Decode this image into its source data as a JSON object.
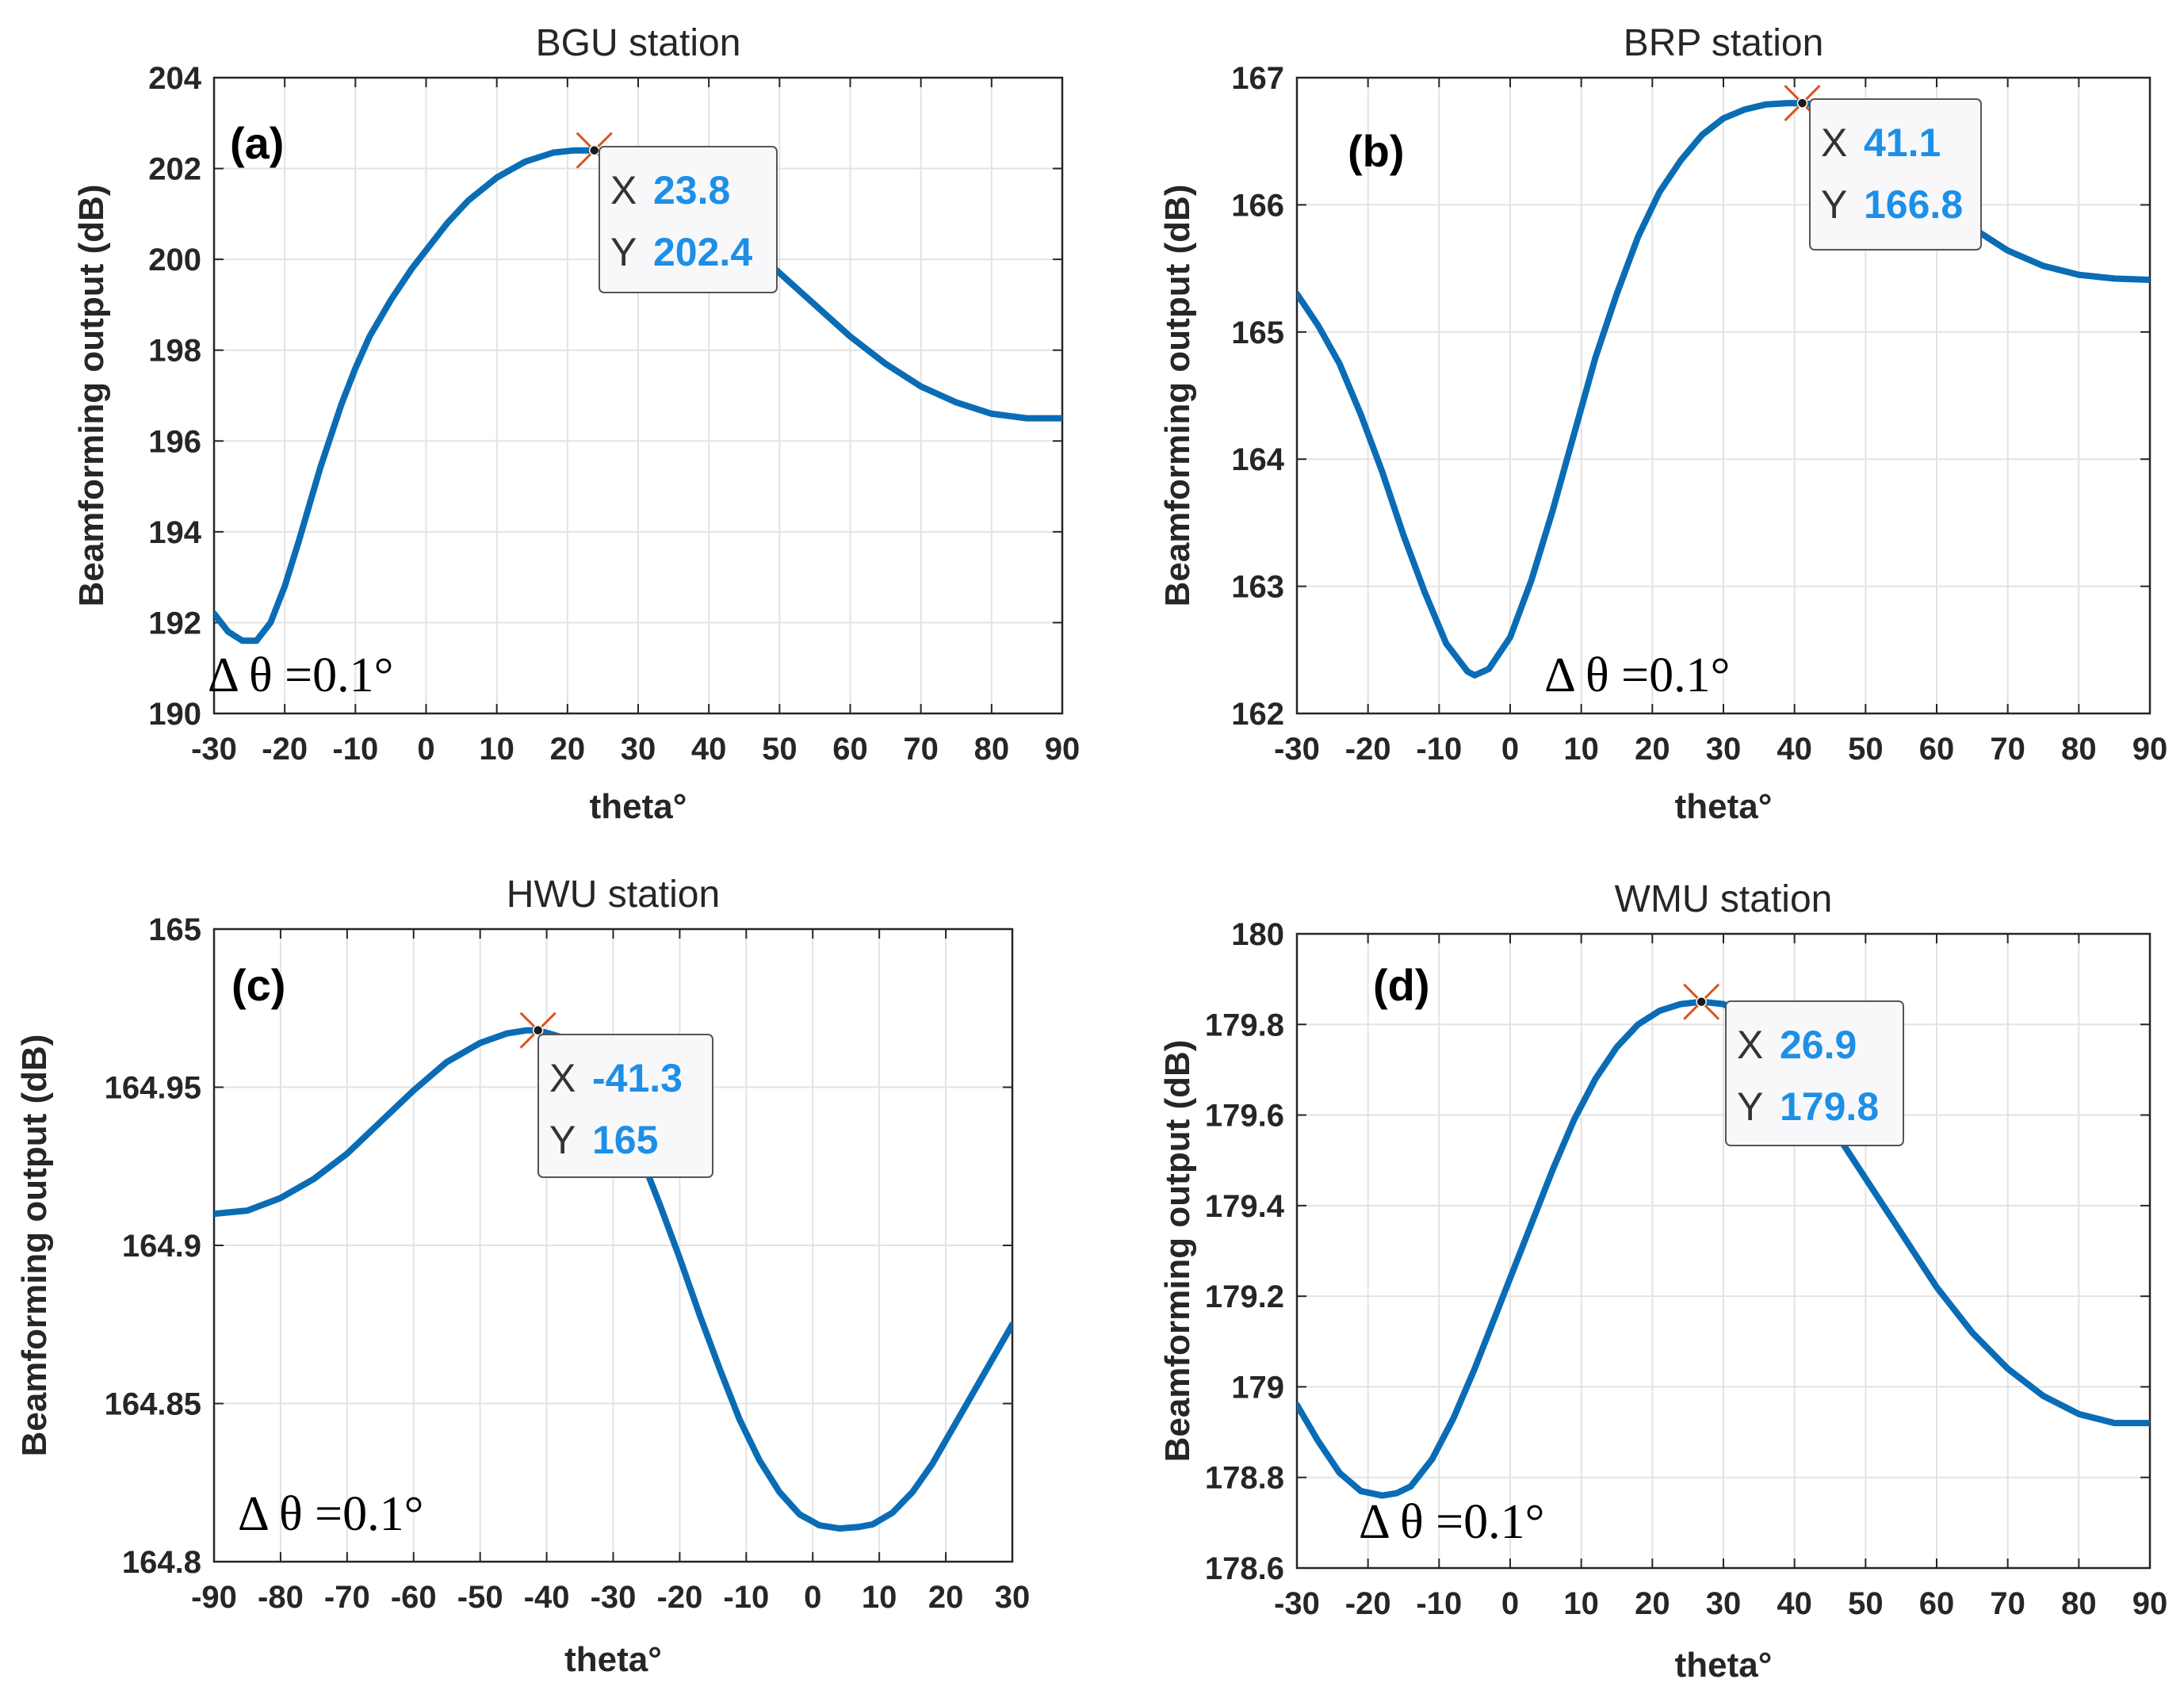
{
  "colors": {
    "curve": "#0a6cb5",
    "datatip_value": "#1e8fe6",
    "marker_cross": "#d9541a"
  },
  "chart_data": [
    {
      "type": "line",
      "panel_label": "(a)",
      "title": "BGU station",
      "xlabel": "theta°",
      "ylabel": "Beamforming output (dB)",
      "xlim": [
        -30,
        90
      ],
      "ylim": [
        190,
        204
      ],
      "x_ticks": [
        -30,
        -20,
        -10,
        0,
        10,
        20,
        30,
        40,
        50,
        60,
        70,
        80,
        90
      ],
      "y_ticks": [
        190,
        192,
        194,
        196,
        198,
        200,
        202,
        204
      ],
      "x_tick_labels": [
        "-30",
        "-20",
        "-10",
        "0",
        "10",
        "20",
        "30",
        "40",
        "50",
        "60",
        "70",
        "80",
        "90"
      ],
      "y_tick_labels": [
        "190",
        "192",
        "194",
        "196",
        "198",
        "200",
        "202",
        "204"
      ],
      "grid": true,
      "annotation": "Δ θ =0.1°",
      "series": [
        {
          "name": "Beamforming output",
          "x": [
            -30,
            -28,
            -26,
            -24,
            -22,
            -20,
            -18,
            -15,
            -12,
            -10,
            -8,
            -5,
            -2,
            0,
            3,
            6,
            10,
            14,
            18,
            21,
            23.8,
            27,
            30,
            35,
            40,
            45,
            50,
            55,
            60,
            65,
            70,
            75,
            80,
            85,
            90
          ],
          "y": [
            192.2,
            191.8,
            191.6,
            191.6,
            192.0,
            192.8,
            193.8,
            195.4,
            196.8,
            197.6,
            198.3,
            199.1,
            199.8,
            200.2,
            200.8,
            201.3,
            201.8,
            202.15,
            202.35,
            202.4,
            202.4,
            202.3,
            202.1,
            201.6,
            201.0,
            200.4,
            199.7,
            199.0,
            198.3,
            197.7,
            197.2,
            196.85,
            196.6,
            196.5,
            196.5
          ]
        }
      ],
      "datatip": {
        "x": 23.8,
        "y": 202.4,
        "x_label": "X",
        "y_label": "Y",
        "x_text": "23.8",
        "y_text": "202.4"
      }
    },
    {
      "type": "line",
      "panel_label": "(b)",
      "title": "BRP station",
      "xlabel": "theta°",
      "ylabel": "Beamforming output (dB)",
      "xlim": [
        -30,
        90
      ],
      "ylim": [
        162,
        167
      ],
      "x_ticks": [
        -30,
        -20,
        -10,
        0,
        10,
        20,
        30,
        40,
        50,
        60,
        70,
        80,
        90
      ],
      "y_ticks": [
        162,
        163,
        164,
        165,
        166,
        167
      ],
      "x_tick_labels": [
        "-30",
        "-20",
        "-10",
        "0",
        "10",
        "20",
        "30",
        "40",
        "50",
        "60",
        "70",
        "80",
        "90"
      ],
      "y_tick_labels": [
        "162",
        "163",
        "164",
        "165",
        "166",
        "167"
      ],
      "grid": true,
      "annotation": "Δ θ =0.1°",
      "series": [
        {
          "name": "Beamforming output",
          "x": [
            -30,
            -27,
            -24,
            -21,
            -18,
            -15,
            -12,
            -9,
            -6,
            -5,
            -3,
            0,
            3,
            6,
            9,
            12,
            15,
            18,
            21,
            24,
            27,
            30,
            33,
            36,
            39,
            41.1,
            44,
            48,
            52,
            56,
            60,
            65,
            70,
            75,
            80,
            85,
            90
          ],
          "y": [
            165.3,
            165.05,
            164.75,
            164.35,
            163.9,
            163.4,
            162.95,
            162.55,
            162.33,
            162.3,
            162.35,
            162.6,
            163.05,
            163.6,
            164.2,
            164.8,
            165.3,
            165.75,
            166.1,
            166.35,
            166.55,
            166.68,
            166.75,
            166.79,
            166.8,
            166.8,
            166.78,
            166.68,
            166.5,
            166.28,
            166.05,
            165.82,
            165.64,
            165.52,
            165.45,
            165.42,
            165.41
          ]
        }
      ],
      "datatip": {
        "x": 41.1,
        "y": 166.8,
        "x_label": "X",
        "y_label": "Y",
        "x_text": "41.1",
        "y_text": "166.8"
      }
    },
    {
      "type": "line",
      "panel_label": "(c)",
      "title": "HWU station",
      "xlabel": "theta°",
      "ylabel": "Beamforming output (dB)",
      "xlim": [
        -90,
        30
      ],
      "ylim": [
        164.8,
        165
      ],
      "x_ticks": [
        -90,
        -80,
        -70,
        -60,
        -50,
        -40,
        -30,
        -20,
        -10,
        0,
        10,
        20,
        30
      ],
      "y_ticks": [
        164.8,
        164.85,
        164.9,
        164.95,
        165
      ],
      "x_tick_labels": [
        "-90",
        "-80",
        "-70",
        "-60",
        "-50",
        "-40",
        "-30",
        "-20",
        "-10",
        "0",
        "10",
        "20",
        "30"
      ],
      "y_tick_labels": [
        "164.8",
        "164.85",
        "164.9",
        "164.95",
        "165"
      ],
      "grid": true,
      "annotation": "Δ θ =0.1°",
      "series": [
        {
          "name": "Beamforming output",
          "x": [
            -90,
            -85,
            -80,
            -75,
            -70,
            -65,
            -60,
            -55,
            -50,
            -46,
            -43,
            -41.3,
            -38,
            -35,
            -32,
            -29,
            -26,
            -23,
            -20,
            -17,
            -14,
            -11,
            -8,
            -5,
            -2,
            1,
            4,
            7,
            9,
            12,
            15,
            18,
            21,
            24,
            27,
            30
          ],
          "y": [
            164.91,
            164.911,
            164.915,
            164.921,
            164.929,
            164.939,
            164.949,
            164.958,
            164.964,
            164.967,
            164.968,
            164.968,
            164.966,
            164.961,
            164.953,
            164.942,
            164.929,
            164.913,
            164.896,
            164.878,
            164.861,
            164.845,
            164.832,
            164.822,
            164.815,
            164.8115,
            164.8105,
            164.811,
            164.8118,
            164.8155,
            164.822,
            164.831,
            164.842,
            164.853,
            164.864,
            164.875
          ]
        }
      ],
      "datatip": {
        "x": -41.3,
        "y": 165,
        "x_label": "X",
        "y_label": "Y",
        "x_text": "-41.3",
        "y_text": "165"
      }
    },
    {
      "type": "line",
      "panel_label": "(d)",
      "title": "WMU station",
      "xlabel": "theta°",
      "ylabel": "Beamforming output (dB)",
      "xlim": [
        -30,
        90
      ],
      "ylim": [
        178.6,
        180
      ],
      "x_ticks": [
        -30,
        -20,
        -10,
        0,
        10,
        20,
        30,
        40,
        50,
        60,
        70,
        80,
        90
      ],
      "y_ticks": [
        178.6,
        178.8,
        179,
        179.2,
        179.4,
        179.6,
        179.8,
        180
      ],
      "x_tick_labels": [
        "-30",
        "-20",
        "-10",
        "0",
        "10",
        "20",
        "30",
        "40",
        "50",
        "60",
        "70",
        "80",
        "90"
      ],
      "y_tick_labels": [
        "178.6",
        "178.8",
        "179",
        "179.2",
        "179.4",
        "179.6",
        "179.8",
        "180"
      ],
      "grid": true,
      "annotation": "Δ θ =0.1°",
      "series": [
        {
          "name": "Beamforming output",
          "x": [
            -30,
            -27,
            -24,
            -21,
            -18,
            -16,
            -14,
            -11,
            -8,
            -5,
            -2,
            0,
            3,
            6,
            9,
            12,
            15,
            18,
            21,
            24,
            26.9,
            30,
            33,
            36,
            40,
            45,
            50,
            55,
            60,
            65,
            70,
            75,
            80,
            85,
            90
          ],
          "y": [
            178.96,
            178.88,
            178.81,
            178.77,
            178.76,
            178.765,
            178.78,
            178.84,
            178.93,
            179.04,
            179.16,
            179.24,
            179.36,
            179.48,
            179.59,
            179.68,
            179.75,
            179.8,
            179.83,
            179.845,
            179.85,
            179.845,
            179.82,
            179.78,
            179.7,
            179.58,
            179.46,
            179.34,
            179.22,
            179.12,
            179.04,
            178.98,
            178.94,
            178.92,
            178.92
          ]
        }
      ],
      "datatip": {
        "x": 26.9,
        "y": 179.8,
        "x_label": "X",
        "y_label": "Y",
        "x_text": "26.9",
        "y_text": "179.8"
      }
    }
  ]
}
